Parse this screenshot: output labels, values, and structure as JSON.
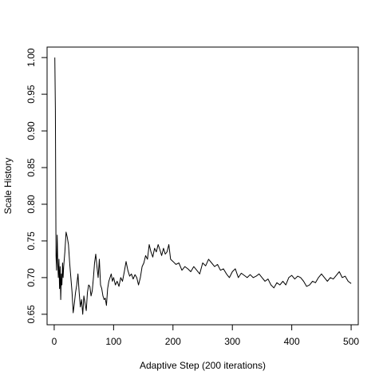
{
  "chart_data": {
    "type": "line",
    "title": "",
    "xlabel": "Adaptive Step (200 iterations)",
    "ylabel": "Scale History",
    "xlim": [
      -12,
      512
    ],
    "ylim": [
      0.6357,
      1.0143
    ],
    "x_ticks": [
      0,
      100,
      200,
      300,
      400,
      500
    ],
    "y_ticks": [
      0.65,
      0.7,
      0.75,
      0.8,
      0.85,
      0.9,
      0.95,
      1.0
    ],
    "x_tick_labels": [
      "0",
      "100",
      "200",
      "300",
      "400",
      "500"
    ],
    "y_tick_labels": [
      "0.65",
      "0.70",
      "0.75",
      "0.80",
      "0.85",
      "0.90",
      "0.95",
      "1.00"
    ],
    "grid": false,
    "line_color": "#000000",
    "series": [
      {
        "x": [
          1,
          2,
          3,
          4,
          5,
          6,
          7,
          8,
          9,
          10,
          11,
          12,
          13,
          14,
          15,
          16,
          18,
          20,
          22,
          24,
          26,
          28,
          30,
          32,
          34,
          36,
          38,
          40,
          42,
          44,
          46,
          48,
          50,
          52,
          54,
          56,
          58,
          60,
          62,
          64,
          66,
          68,
          70,
          72,
          74,
          76,
          78,
          80,
          82,
          84,
          86,
          88,
          90,
          92,
          94,
          96,
          98,
          100,
          103,
          106,
          109,
          112,
          115,
          118,
          121,
          124,
          127,
          130,
          133,
          136,
          139,
          142,
          145,
          148,
          151,
          154,
          157,
          160,
          163,
          166,
          169,
          172,
          175,
          178,
          181,
          184,
          187,
          190,
          193,
          196,
          200,
          205,
          210,
          215,
          220,
          225,
          230,
          235,
          240,
          245,
          250,
          255,
          260,
          265,
          270,
          275,
          280,
          285,
          290,
          295,
          300,
          305,
          310,
          315,
          320,
          325,
          330,
          335,
          340,
          345,
          350,
          355,
          360,
          365,
          370,
          375,
          380,
          385,
          390,
          395,
          400,
          405,
          410,
          415,
          420,
          425,
          430,
          435,
          440,
          445,
          450,
          455,
          460,
          465,
          470,
          475,
          480,
          485,
          490,
          495,
          500
        ],
        "y": [
          1.0,
          0.93,
          0.73,
          0.71,
          0.758,
          0.72,
          0.7,
          0.725,
          0.685,
          0.715,
          0.67,
          0.705,
          0.69,
          0.72,
          0.7,
          0.715,
          0.735,
          0.762,
          0.755,
          0.745,
          0.72,
          0.7,
          0.68,
          0.652,
          0.665,
          0.68,
          0.69,
          0.705,
          0.68,
          0.66,
          0.67,
          0.65,
          0.675,
          0.665,
          0.655,
          0.68,
          0.69,
          0.688,
          0.675,
          0.682,
          0.7,
          0.72,
          0.732,
          0.715,
          0.7,
          0.725,
          0.69,
          0.685,
          0.675,
          0.67,
          0.672,
          0.662,
          0.685,
          0.695,
          0.7,
          0.705,
          0.695,
          0.7,
          0.69,
          0.695,
          0.688,
          0.7,
          0.695,
          0.708,
          0.722,
          0.71,
          0.702,
          0.705,
          0.698,
          0.704,
          0.7,
          0.69,
          0.7,
          0.715,
          0.72,
          0.73,
          0.725,
          0.745,
          0.735,
          0.728,
          0.74,
          0.735,
          0.745,
          0.738,
          0.73,
          0.74,
          0.732,
          0.735,
          0.745,
          0.725,
          0.722,
          0.718,
          0.72,
          0.71,
          0.715,
          0.712,
          0.708,
          0.715,
          0.71,
          0.705,
          0.72,
          0.716,
          0.725,
          0.72,
          0.715,
          0.718,
          0.71,
          0.712,
          0.705,
          0.7,
          0.708,
          0.712,
          0.7,
          0.706,
          0.703,
          0.7,
          0.704,
          0.7,
          0.702,
          0.705,
          0.7,
          0.695,
          0.698,
          0.69,
          0.686,
          0.693,
          0.69,
          0.695,
          0.69,
          0.7,
          0.703,
          0.698,
          0.702,
          0.7,
          0.695,
          0.688,
          0.69,
          0.695,
          0.693,
          0.7,
          0.705,
          0.7,
          0.695,
          0.7,
          0.698,
          0.703,
          0.708,
          0.7,
          0.702,
          0.695,
          0.692
        ]
      }
    ]
  }
}
